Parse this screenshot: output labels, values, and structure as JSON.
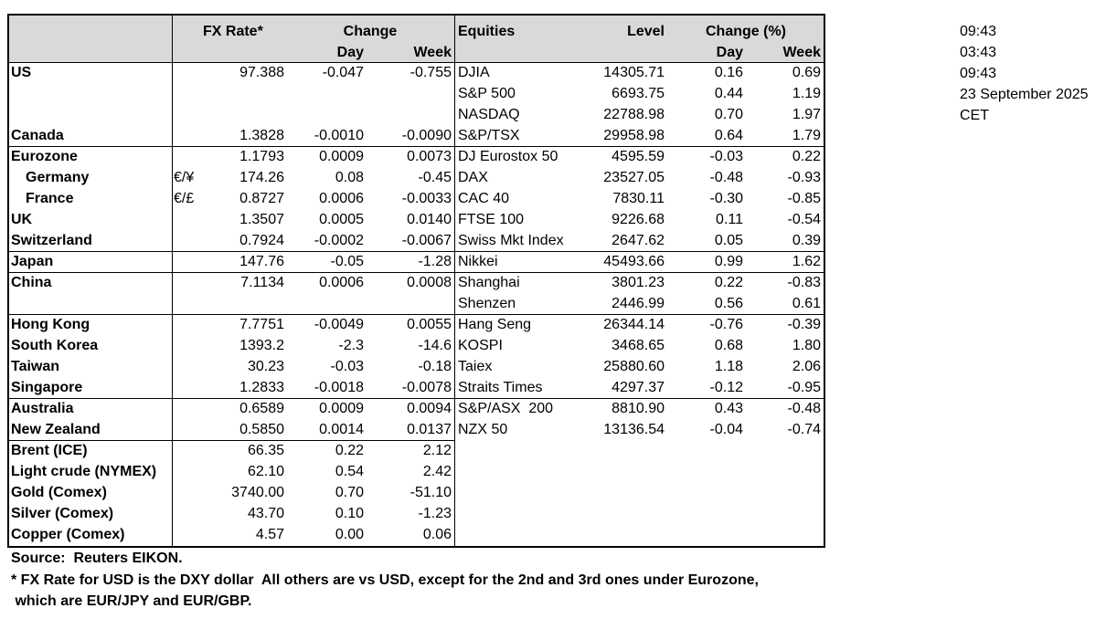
{
  "table": {
    "header": {
      "fx_rate": "FX Rate*",
      "change": "Change",
      "day": "Day",
      "week": "Week",
      "equities": "Equities",
      "level": "Level",
      "change_pct": "Change (%)",
      "eq_day": "Day",
      "eq_week": "Week"
    },
    "rows": [
      [
        "US",
        null,
        "97.388",
        "-0.047",
        "-0.755",
        "DJIA",
        "14305.71",
        "0.16",
        "0.69"
      ],
      [
        null,
        null,
        null,
        null,
        null,
        "S&P 500",
        "6693.75",
        "0.44",
        "1.19"
      ],
      [
        null,
        null,
        null,
        null,
        null,
        "NASDAQ",
        "22788.98",
        "0.70",
        "1.97"
      ],
      [
        "Canada",
        null,
        "1.3828",
        "-0.0010",
        "-0.0090",
        "S&P/TSX",
        "29958.98",
        "0.64",
        "1.79"
      ],
      [
        "Eurozone",
        null,
        "1.1793",
        "0.0009",
        "0.0073",
        "DJ Eurostox 50",
        "4595.59",
        "-0.03",
        "0.22"
      ],
      [
        "Germany",
        "€/¥",
        "174.26",
        "0.08",
        "-0.45",
        "DAX",
        "23527.05",
        "-0.48",
        "-0.93"
      ],
      [
        "France",
        "€/£",
        "0.8727",
        "0.0006",
        "-0.0033",
        "CAC 40",
        "7830.11",
        "-0.30",
        "-0.85"
      ],
      [
        "UK",
        null,
        "1.3507",
        "0.0005",
        "0.0140",
        "FTSE 100",
        "9226.68",
        "0.11",
        "-0.54"
      ],
      [
        "Switzerland",
        null,
        "0.7924",
        "-0.0002",
        "-0.0067",
        "Swiss Mkt Index",
        "2647.62",
        "0.05",
        "0.39"
      ],
      [
        "Japan",
        null,
        "147.76",
        "-0.05",
        "-1.28",
        "Nikkei",
        "45493.66",
        "0.99",
        "1.62"
      ],
      [
        "China",
        null,
        "7.1134",
        "0.0006",
        "0.0008",
        "Shanghai",
        "3801.23",
        "0.22",
        "-0.83"
      ],
      [
        null,
        null,
        null,
        null,
        null,
        "Shenzen",
        "2446.99",
        "0.56",
        "0.61"
      ],
      [
        "Hong Kong",
        null,
        "7.7751",
        "-0.0049",
        "0.0055",
        "Hang Seng",
        "26344.14",
        "-0.76",
        "-0.39"
      ],
      [
        "South Korea",
        null,
        "1393.2",
        "-2.3",
        "-14.6",
        "KOSPI",
        "3468.65",
        "0.68",
        "1.80"
      ],
      [
        "Taiwan",
        null,
        "30.23",
        "-0.03",
        "-0.18",
        "Taiex",
        "25880.60",
        "1.18",
        "2.06"
      ],
      [
        "Singapore",
        null,
        "1.2833",
        "-0.0018",
        "-0.0078",
        "Straits Times",
        "4297.37",
        "-0.12",
        "-0.95"
      ],
      [
        "Australia",
        null,
        "0.6589",
        "0.0009",
        "0.0094",
        "S&P/ASX  200",
        "8810.90",
        "0.43",
        "-0.48"
      ],
      [
        "New Zealand",
        null,
        "0.5850",
        "0.0014",
        "0.0137",
        "NZX 50",
        "13136.54",
        "-0.04",
        "-0.74"
      ],
      [
        "Brent (ICE)",
        null,
        "66.35",
        "0.22",
        "2.12",
        null,
        null,
        null,
        null
      ],
      [
        "Light crude (NYMEX)",
        null,
        "62.10",
        "0.54",
        "2.42",
        null,
        null,
        null,
        null
      ],
      [
        "Gold (Comex)",
        null,
        "3740.00",
        "0.70",
        "-51.10",
        null,
        null,
        null,
        null
      ],
      [
        "Silver (Comex)",
        null,
        "43.70",
        "0.10",
        "-1.23",
        null,
        null,
        null,
        null
      ],
      [
        "Copper (Comex)",
        null,
        "4.57",
        "0.00",
        "0.06",
        null,
        null,
        null,
        null
      ]
    ]
  },
  "timestamps": [
    "09:43",
    "03:43",
    "09:43",
    "23 September 2025",
    "CET"
  ],
  "footer": {
    "source": "Source:  Reuters EIKON.",
    "note_1": "* FX Rate for USD is the DXY dollar  All others are vs USD, except for the 2nd and 3rd ones under Eurozone,",
    "note_2": " which are EUR/JPY and EUR/GBP."
  }
}
